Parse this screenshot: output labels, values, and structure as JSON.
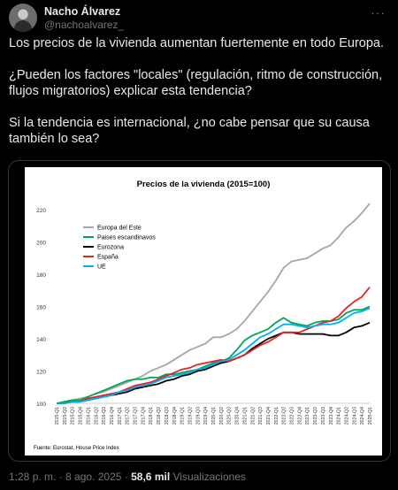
{
  "author": {
    "name": "Nacho Álvarez",
    "handle": "@nachoalvarez_",
    "avatar_icon": "avatar-photo"
  },
  "menu_icon": "more-dots-icon",
  "tweet": {
    "paragraphs": [
      "Los precios de la vivienda aumentan fuertemente en todo Europa.",
      "¿Pueden los factores \"locales\" (regulación, ritmo de construcción, flujos migratorios) explicar esta tendencia?",
      "Si la tendencia es internacional, ¿no cabe pensar que su causa también lo sea?"
    ]
  },
  "footer": {
    "time": "1:28 p. m.",
    "sep": " · ",
    "date": "8 ago. 2025",
    "views_count": "58,6 mil",
    "views_label": "Visualizaciones"
  },
  "chart_data": {
    "type": "line",
    "title": "Precios de la vivienda (2015=100)",
    "source": "Fuente: Eurostat, House Price Index",
    "ylim": [
      100,
      230
    ],
    "yticks": [
      100,
      120,
      140,
      160,
      180,
      200,
      220
    ],
    "grid": false,
    "legend_position": "top-left",
    "categories": [
      "2015-Q1",
      "2015-Q2",
      "2015-Q3",
      "2015-Q4",
      "2016-Q1",
      "2016-Q2",
      "2016-Q3",
      "2016-Q4",
      "2017-Q1",
      "2017-Q2",
      "2017-Q3",
      "2017-Q4",
      "2018-Q1",
      "2018-Q2",
      "2018-Q3",
      "2018-Q4",
      "2019-Q1",
      "2019-Q2",
      "2019-Q3",
      "2019-Q4",
      "2020-Q1",
      "2020-Q2",
      "2020-Q3",
      "2020-Q4",
      "2021-Q1",
      "2021-Q2",
      "2021-Q3",
      "2021-Q4",
      "2022-Q1",
      "2022-Q2",
      "2022-Q3",
      "2022-Q4",
      "2023-Q1",
      "2023-Q2",
      "2023-Q3",
      "2023-Q4",
      "2024-Q1",
      "2024-Q2",
      "2024-Q3",
      "2024-Q4",
      "2025-Q1"
    ],
    "series": [
      {
        "name": "Europa del Este",
        "color": "#a6a6a6",
        "values": [
          100,
          101,
          102,
          103,
          104,
          106,
          107,
          109,
          111,
          113,
          115,
          117,
          120,
          122,
          124,
          127,
          130,
          133,
          135,
          137,
          141,
          141,
          143,
          146,
          151,
          157,
          163,
          169,
          176,
          184,
          188,
          189,
          190,
          193,
          196,
          198,
          203,
          209,
          213,
          218,
          224
        ]
      },
      {
        "name": "Paises escandinavos",
        "color": "#00a651",
        "values": [
          100,
          101,
          102,
          102,
          104,
          106,
          108,
          110,
          112,
          114,
          115,
          115,
          116,
          116,
          118,
          118,
          119,
          120,
          121,
          123,
          125,
          126,
          128,
          133,
          139,
          142,
          144,
          146,
          150,
          153,
          150,
          149,
          148,
          150,
          151,
          151,
          152,
          156,
          158,
          158,
          160
        ]
      },
      {
        "name": "Eurozona",
        "color": "#000000",
        "values": [
          100,
          100,
          101,
          101,
          102,
          103,
          104,
          105,
          106,
          107,
          109,
          110,
          111,
          112,
          114,
          115,
          117,
          118,
          120,
          121,
          123,
          125,
          126,
          128,
          130,
          134,
          137,
          140,
          142,
          144,
          144,
          143,
          143,
          143,
          143,
          142,
          142,
          144,
          147,
          148,
          150
        ]
      },
      {
        "name": "España",
        "color": "#e8202a",
        "values": [
          100,
          100,
          101,
          101,
          103,
          104,
          105,
          106,
          107,
          109,
          111,
          112,
          113,
          115,
          117,
          119,
          121,
          122,
          124,
          125,
          126,
          127,
          126,
          128,
          130,
          133,
          136,
          138,
          141,
          144,
          144,
          144,
          146,
          148,
          150,
          151,
          154,
          159,
          163,
          166,
          172
        ]
      },
      {
        "name": "UE",
        "color": "#00b0f0",
        "values": [
          100,
          100,
          101,
          101,
          102,
          103,
          104,
          105,
          107,
          108,
          110,
          111,
          112,
          114,
          116,
          117,
          118,
          119,
          121,
          122,
          124,
          126,
          127,
          130,
          133,
          137,
          141,
          143,
          146,
          149,
          149,
          148,
          147,
          148,
          149,
          149,
          150,
          153,
          156,
          157,
          159
        ]
      }
    ]
  }
}
